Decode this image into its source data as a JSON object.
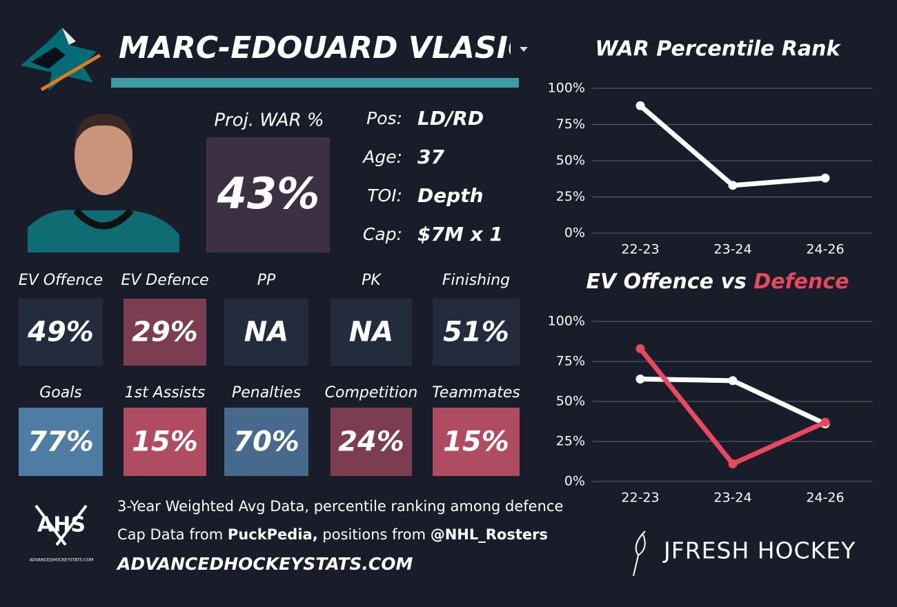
{
  "card": {
    "player_name": "MARC-EDOUARD VLASIC",
    "proj_label": "Proj. WAR %",
    "proj_value": "43%",
    "info": [
      {
        "label": "Pos:",
        "value": "LD/RD"
      },
      {
        "label": "Age:",
        "value": "37"
      },
      {
        "label": "TOI:",
        "value": "Depth"
      },
      {
        "label": "Cap:",
        "value": "$7M x 1"
      }
    ],
    "stats": [
      {
        "label": "EV Offence",
        "value": "49%",
        "color": "#232c3c"
      },
      {
        "label": "EV Defence",
        "value": "29%",
        "color": "#7d3d51"
      },
      {
        "label": "PP",
        "value": "NA",
        "color": "#232c3c"
      },
      {
        "label": "PK",
        "value": "NA",
        "color": "#232c3c"
      },
      {
        "label": "Finishing",
        "value": "51%",
        "color": "#232c3c"
      },
      {
        "label": "Goals",
        "value": "77%",
        "color": "#4f7ca2"
      },
      {
        "label": "1st Assists",
        "value": "15%",
        "color": "#b04c61"
      },
      {
        "label": "Penalties",
        "value": "70%",
        "color": "#46698c"
      },
      {
        "label": "Competition",
        "value": "24%",
        "color": "#7d3d51"
      },
      {
        "label": "Teammates",
        "value": "15%",
        "color": "#b04c61"
      }
    ],
    "ahs_logo": "AHS",
    "ahs_logo_sub": "ADVANCEDHOCKEYSTATS.COM",
    "footnote_1": "3-Year Weighted Avg Data, percentile ranking among defence",
    "footnote_2": [
      "Cap Data from ",
      "PuckPedia,",
      " positions from ",
      "@NHL_Rosters"
    ],
    "site": "ADVANCEDHOCKEYSTATS.COM",
    "brand": "JFRESH HOCKEY"
  },
  "chart_data": [
    {
      "type": "line",
      "title": "WAR Percentile Rank",
      "categories": [
        "22-23",
        "23-24",
        "24-26"
      ],
      "series": [
        {
          "color": "#ffffff",
          "values": [
            88,
            33,
            38
          ]
        }
      ],
      "ylim": [
        0,
        100
      ],
      "yticks": [
        {
          "value": 0,
          "label": "0%"
        },
        {
          "value": 25,
          "label": "25%"
        },
        {
          "value": 50,
          "label": "50%"
        },
        {
          "value": 75,
          "label": "75%"
        },
        {
          "value": 100,
          "label": "100%"
        }
      ],
      "grid": true
    },
    {
      "type": "line",
      "title_joiner": "vs",
      "categories": [
        "22-23",
        "23-24",
        "24-26"
      ],
      "series": [
        {
          "name": "EV Offence",
          "color": "#ffffff",
          "values": [
            64,
            63,
            36
          ]
        },
        {
          "name": "Defence",
          "color": "#e8495f",
          "values": [
            83,
            11,
            37
          ]
        }
      ],
      "ylim": [
        0,
        100
      ],
      "yticks": [
        {
          "value": 0,
          "label": "0%"
        },
        {
          "value": 25,
          "label": "25%"
        },
        {
          "value": 50,
          "label": "50%"
        },
        {
          "value": 75,
          "label": "75%"
        },
        {
          "value": 100,
          "label": "100%"
        }
      ],
      "grid": true
    }
  ]
}
